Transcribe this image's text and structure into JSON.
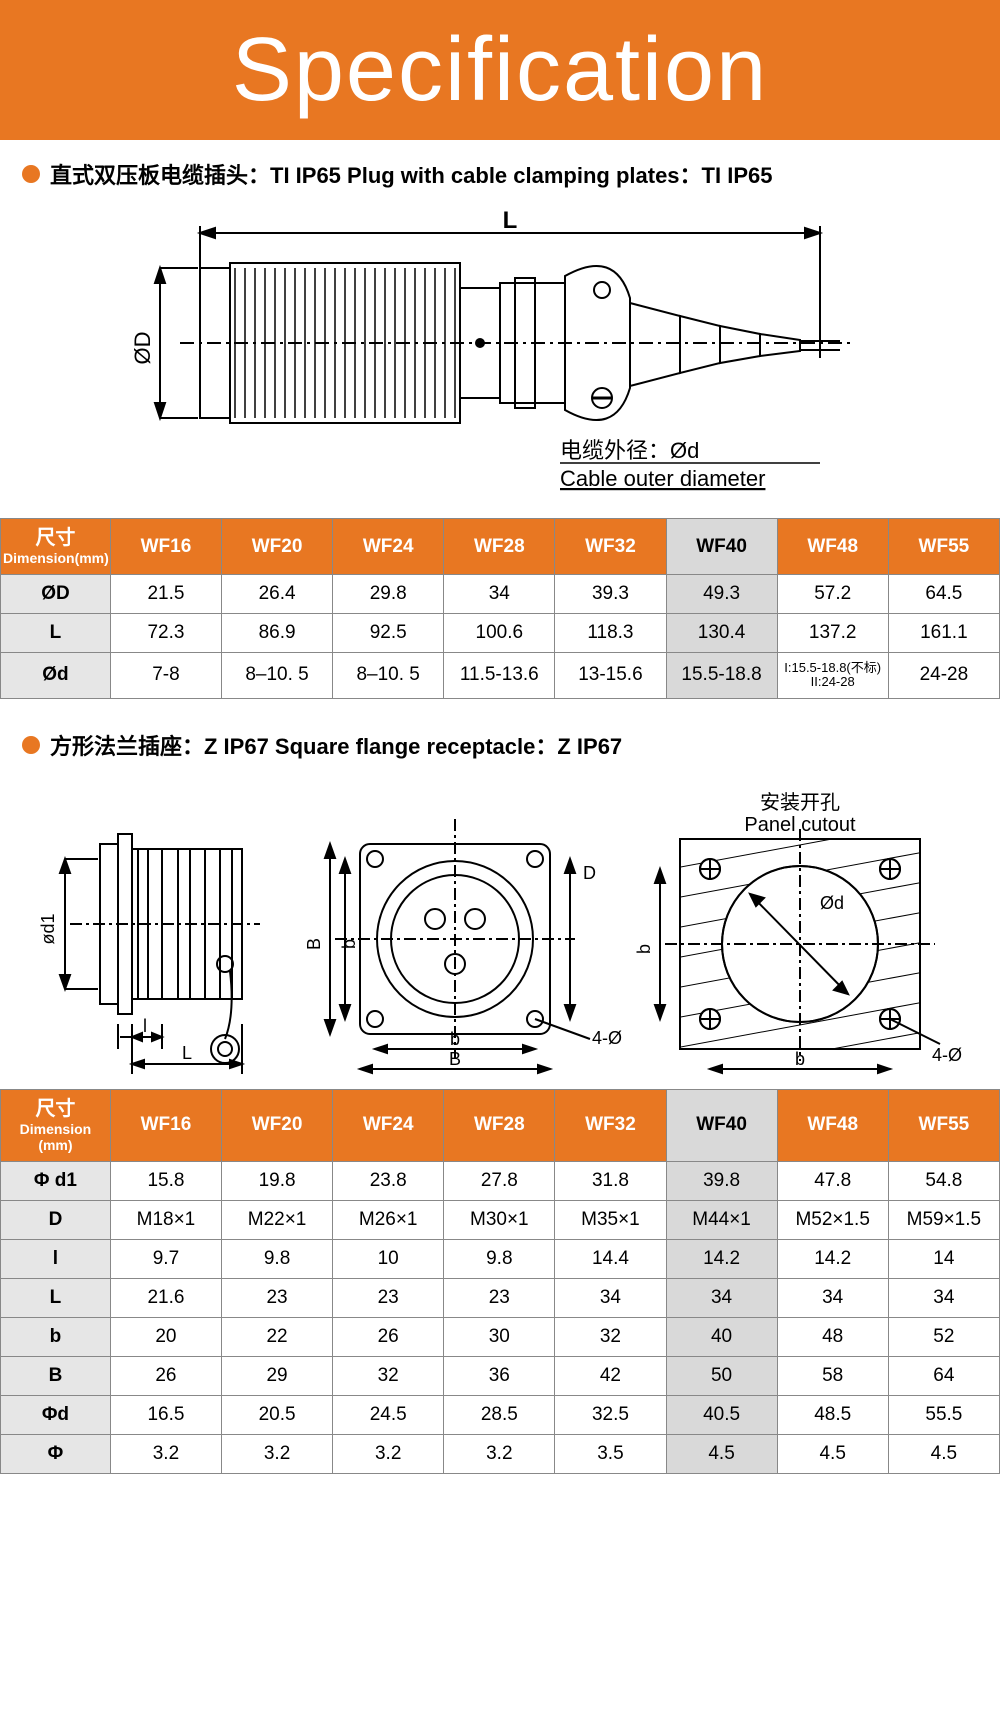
{
  "colors": {
    "accent": "#e87722",
    "banner_bg": "#e87722",
    "banner_text": "#ffffff",
    "header_bg": "#e87722",
    "header_text": "#ffffff",
    "row_label_bg": "#e6e6e6",
    "highlight_bg": "#d9d9d9",
    "border": "#888888",
    "diagram_stroke": "#000000"
  },
  "banner": {
    "title": "Specification",
    "font_size": 90,
    "font_weight": 300
  },
  "section1": {
    "bullet_text": "直式双压板电缆插头：TI IP65  Plug with cable clamping plates：TI IP65",
    "diagram": {
      "dim_L": "L",
      "dim_D": "ØD",
      "cable_label_cn": "电缆外径：Ød",
      "cable_label_en": "Cable outer diameter"
    },
    "table": {
      "dim_label_cn": "尺寸",
      "dim_label_en": "Dimension(mm)",
      "columns": [
        "WF16",
        "WF20",
        "WF24",
        "WF28",
        "WF32",
        "WF40",
        "WF48",
        "WF55"
      ],
      "highlight_column_index": 5,
      "rows": [
        {
          "label": "ØD",
          "cells": [
            "21.5",
            "26.4",
            "29.8",
            "34",
            "39.3",
            "49.3",
            "57.2",
            "64.5"
          ]
        },
        {
          "label": "L",
          "cells": [
            "72.3",
            "86.9",
            "92.5",
            "100.6",
            "118.3",
            "130.4",
            "137.2",
            "161.1"
          ]
        },
        {
          "label": "Ød",
          "cells": [
            "7-8",
            "8–10. 5",
            "8–10. 5",
            "11.5-13.6",
            "13-15.6",
            "15.5-18.8",
            "I:15.5-18.8(不标)\nII:24-28",
            "24-28"
          ]
        }
      ]
    }
  },
  "section2": {
    "bullet_text": "方形法兰插座：Z IP67  Square flange receptacle：Z IP67",
    "diagram": {
      "panel_cutout_cn": "安装开孔",
      "panel_cutout_en": "Panel cutout",
      "dim_d1": "ød1",
      "dim_l": "l",
      "dim_L": "L",
      "dim_D": "D",
      "dim_B": "B",
      "dim_b": "b",
      "dim_4phi": "4-Ø",
      "dim_phi_d": "Ød"
    },
    "table": {
      "dim_label_cn": "尺寸",
      "dim_label_en": "Dimension  (mm)",
      "columns": [
        "WF16",
        "WF20",
        "WF24",
        "WF28",
        "WF32",
        "WF40",
        "WF48",
        "WF55"
      ],
      "highlight_column_index": 5,
      "rows": [
        {
          "label": "Φ d1",
          "cells": [
            "15.8",
            "19.8",
            "23.8",
            "27.8",
            "31.8",
            "39.8",
            "47.8",
            "54.8"
          ]
        },
        {
          "label": "D",
          "cells": [
            "M18×1",
            "M22×1",
            "M26×1",
            "M30×1",
            "M35×1",
            "M44×1",
            "M52×1.5",
            "M59×1.5"
          ]
        },
        {
          "label": "l",
          "cells": [
            "9.7",
            "9.8",
            "10",
            "9.8",
            "14.4",
            "14.2",
            "14.2",
            "14"
          ]
        },
        {
          "label": "L",
          "cells": [
            "21.6",
            "23",
            "23",
            "23",
            "34",
            "34",
            "34",
            "34"
          ]
        },
        {
          "label": "b",
          "cells": [
            "20",
            "22",
            "26",
            "30",
            "32",
            "40",
            "48",
            "52"
          ]
        },
        {
          "label": "B",
          "cells": [
            "26",
            "29",
            "32",
            "36",
            "42",
            "50",
            "58",
            "64"
          ]
        },
        {
          "label": "Φd",
          "cells": [
            "16.5",
            "20.5",
            "24.5",
            "28.5",
            "32.5",
            "40.5",
            "48.5",
            "55.5"
          ]
        },
        {
          "label": "Φ",
          "cells": [
            "3.2",
            "3.2",
            "3.2",
            "3.2",
            "3.5",
            "4.5",
            "4.5",
            "4.5"
          ]
        }
      ]
    }
  }
}
